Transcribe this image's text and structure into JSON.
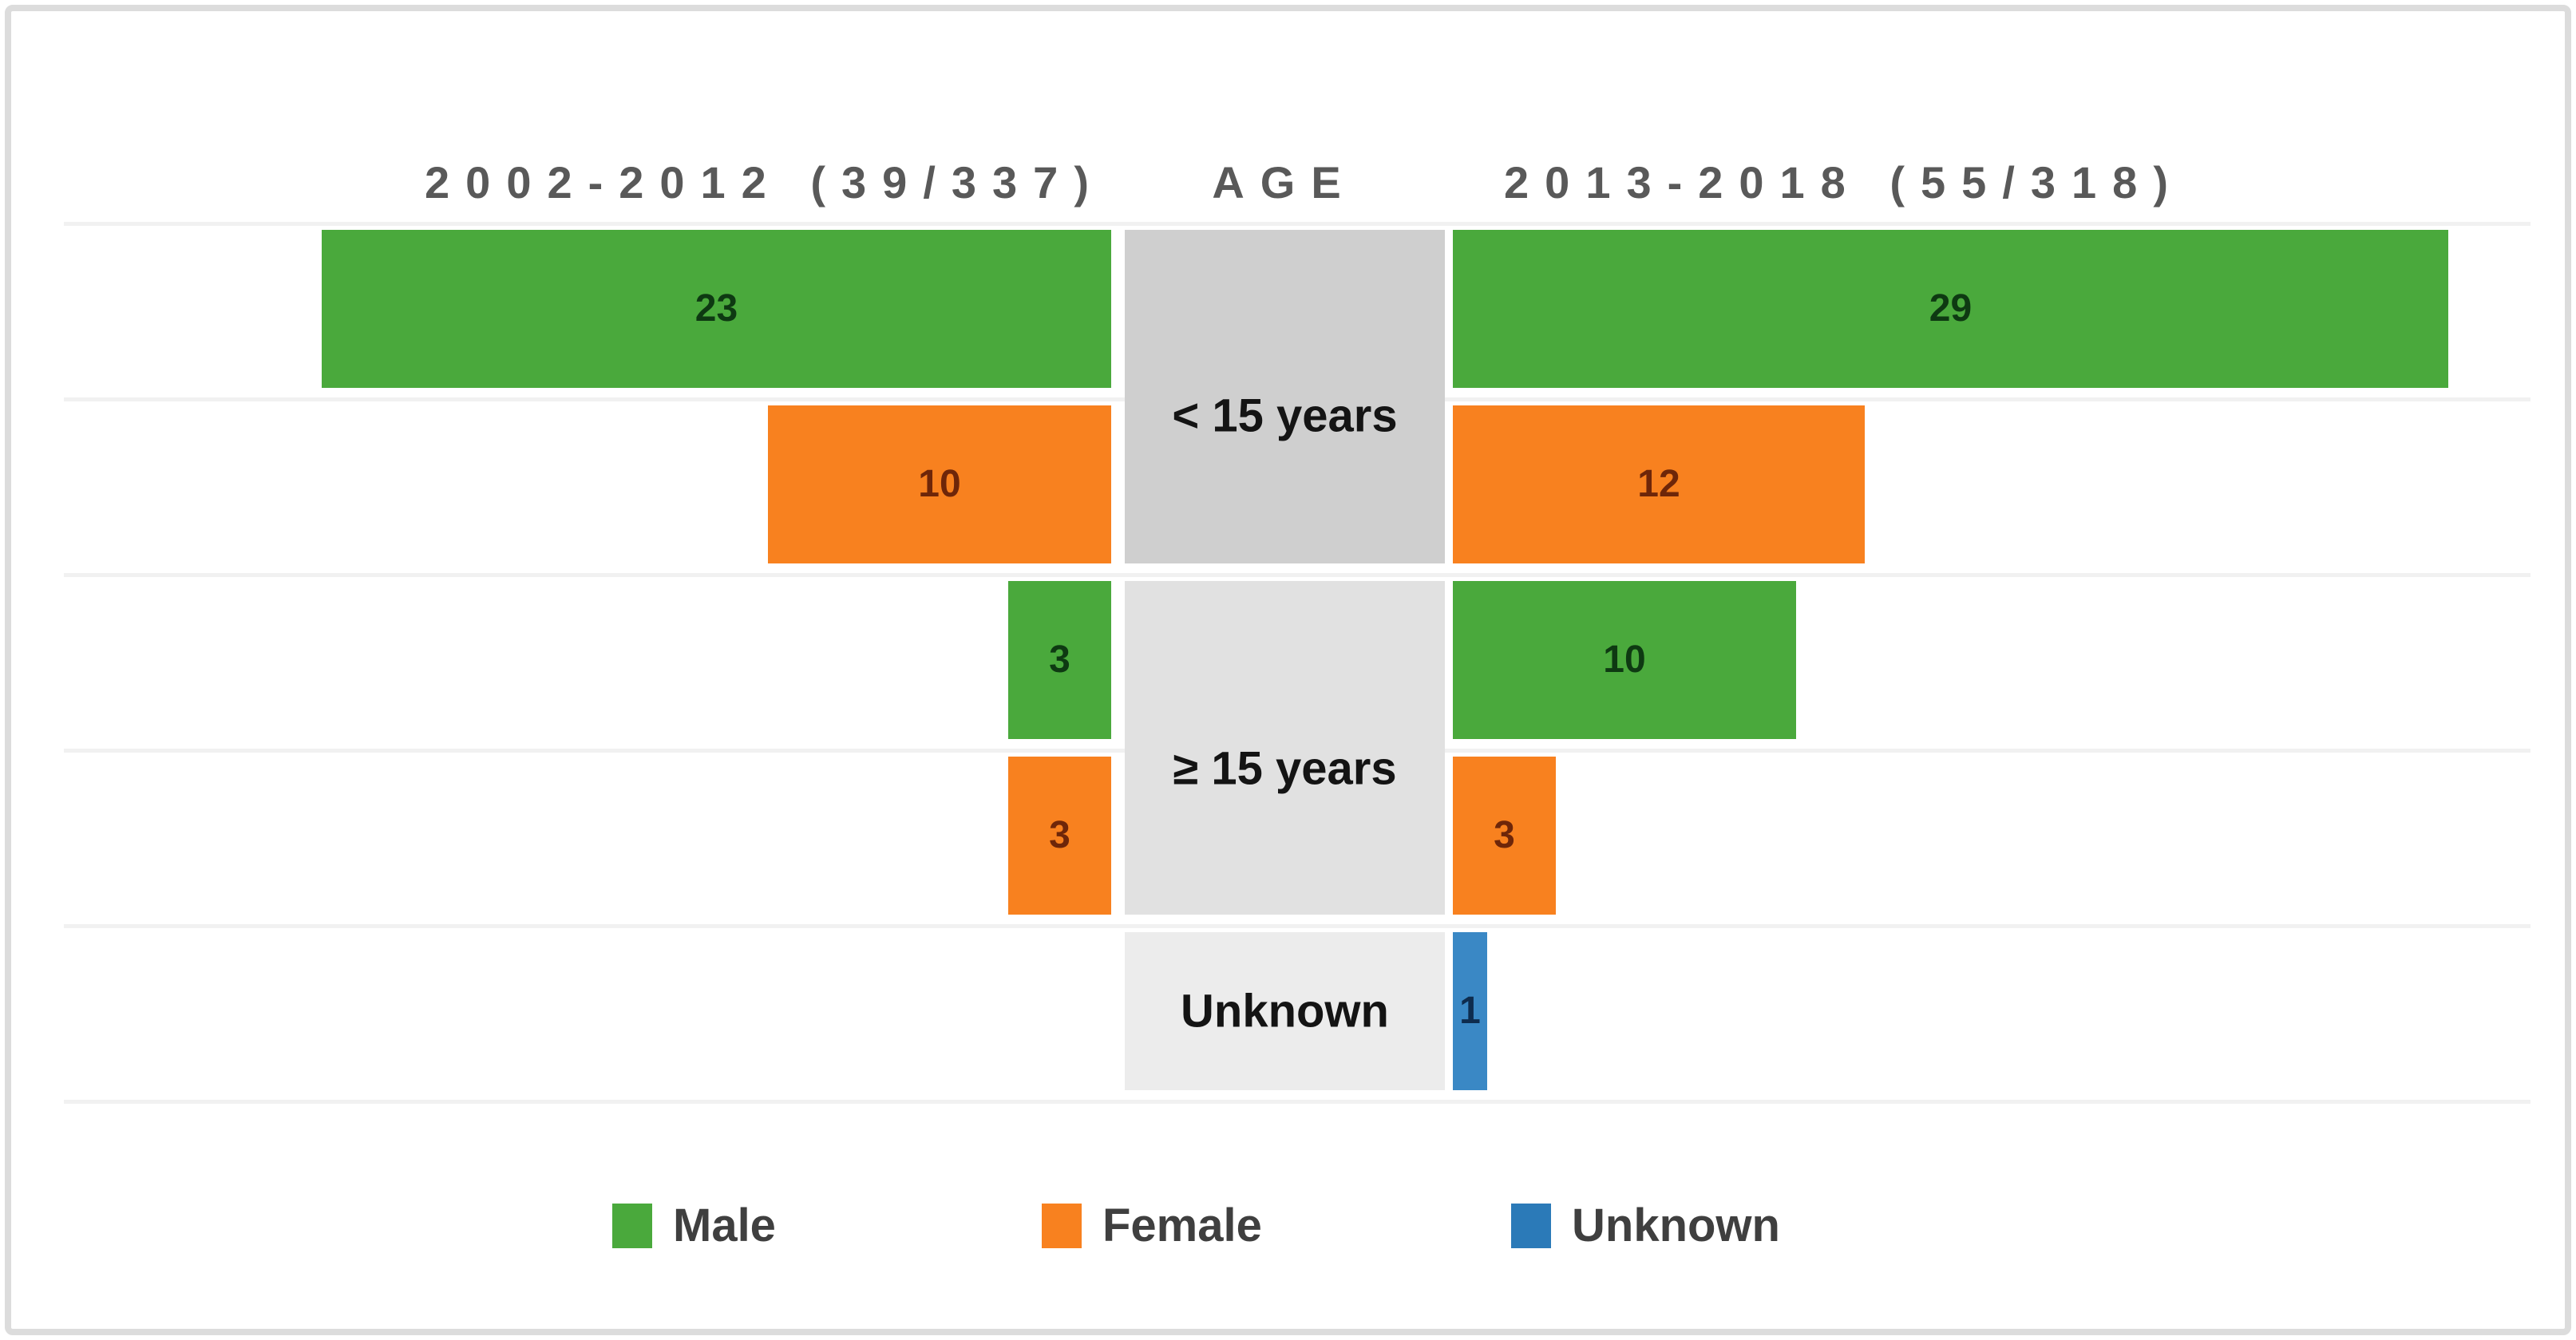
{
  "headers": {
    "left": "2002-2012 (39/337)",
    "center": "AGE",
    "right": "2013-2018 (55/318)"
  },
  "chart_data": {
    "type": "bar",
    "layout_hint": "butterfly / population-pyramid style; two mirrored horizontal bar panels around a central age-category column; gridlines on; legend at bottom center",
    "left_panel_title": "2002-2012 (39/337)",
    "right_panel_title": "2013-2018 (55/318)",
    "center_axis_title": "AGE",
    "age_groups": [
      {
        "label": "< 15 years",
        "box_color": "#cfcfcf"
      },
      {
        "label": "≥ 15 years",
        "box_color": "#e1e1e1"
      },
      {
        "label": "Unknown",
        "box_color": "#ececec"
      }
    ],
    "rows": [
      {
        "group": 0,
        "series": "Male",
        "left": 23,
        "right": 29
      },
      {
        "group": 0,
        "series": "Female",
        "left": 10,
        "right": 12
      },
      {
        "group": 1,
        "series": "Male",
        "left": 3,
        "right": 10
      },
      {
        "group": 1,
        "series": "Female",
        "left": 3,
        "right": 3
      },
      {
        "group": 2,
        "series": "Unknown",
        "left": null,
        "right": 1
      }
    ],
    "series_colors": {
      "Male": "#4aa93c",
      "Female": "#f8811f",
      "Unknown": "#3a88c5"
    },
    "value_label_colors": {
      "Male": "#0e3912",
      "Female": "#6e2609",
      "Unknown": "#0e2c4e"
    },
    "legend": [
      "Male",
      "Female",
      "Unknown"
    ]
  }
}
